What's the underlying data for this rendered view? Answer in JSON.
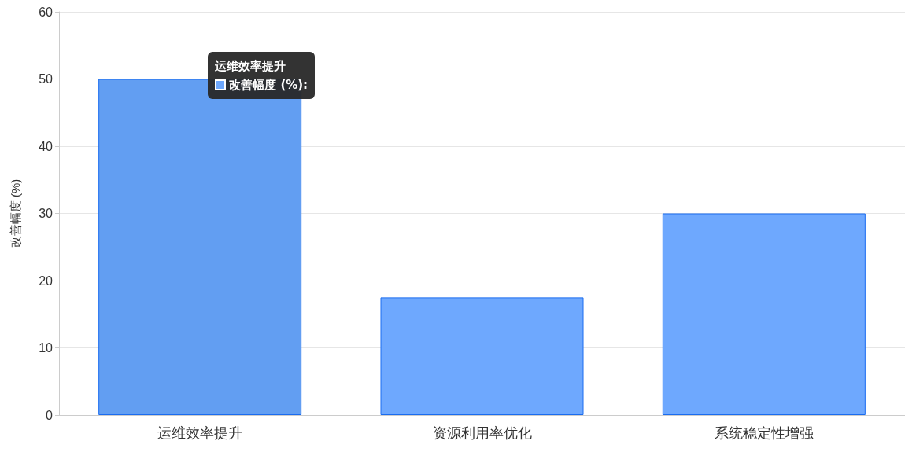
{
  "chart_data": {
    "type": "bar",
    "ylabel": "改善幅度 (%)",
    "categories": [
      "运维效率提升",
      "资源利用率优化",
      "系统稳定性增强"
    ],
    "values": [
      50,
      17.5,
      30
    ],
    "colors": [
      "#629ef2",
      "#6ea8fe",
      "#6ea8fe"
    ],
    "ylim": [
      0,
      60
    ],
    "yticks": [
      0,
      10,
      20,
      30,
      40,
      50,
      60
    ],
    "grid": "y",
    "annotations": [
      {
        "text": "运维效率提升",
        "x": "运维效率提升",
        "y": 50
      },
      "改善幅度 (%):"
    ]
  }
}
